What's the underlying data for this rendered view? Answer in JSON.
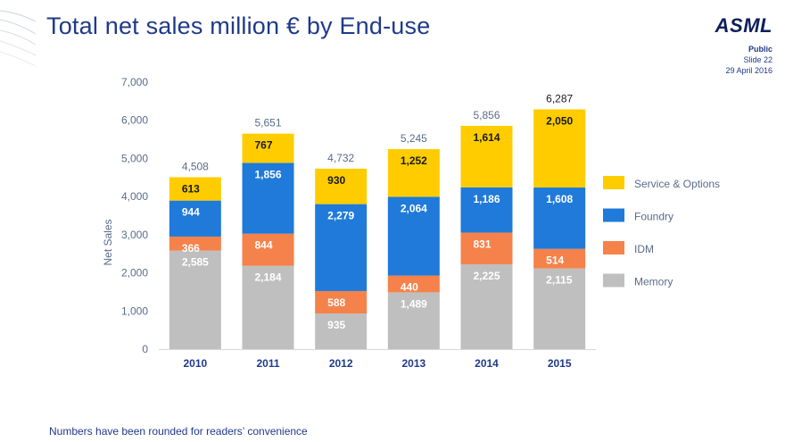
{
  "header": {
    "title": "Total net sales million € by End-use",
    "logo": "ASML",
    "classification": "Public",
    "slide": "Slide 22",
    "date": "29 April 2016"
  },
  "footnote": "Numbers have been rounded for readers’ convenience",
  "colors": {
    "title": "#1f3a8a",
    "memory": "#bfbfbf",
    "idm": "#f5824a",
    "foundry": "#1f7ad9",
    "service": "#ffcc00"
  },
  "chart_data": {
    "type": "bar",
    "stacked": true,
    "title": "",
    "xlabel": "",
    "ylabel": "Net Sales",
    "ylim": [
      0,
      7000
    ],
    "yticks": [
      "0",
      "1,000",
      "2,000",
      "3,000",
      "4,000",
      "5,000",
      "6,000",
      "7,000"
    ],
    "categories": [
      "2010",
      "2011",
      "2012",
      "2013",
      "2014",
      "2015"
    ],
    "series": [
      {
        "name": "Memory",
        "color": "#bfbfbf",
        "values": [
          2585,
          2184,
          935,
          1489,
          2225,
          2115
        ],
        "labels": [
          "2,585",
          "2,184",
          "935",
          "1,489",
          "2,225",
          "2,115"
        ]
      },
      {
        "name": "IDM",
        "color": "#f5824a",
        "values": [
          366,
          844,
          588,
          440,
          831,
          514
        ],
        "labels": [
          "366",
          "844",
          "588",
          "440",
          "831",
          "514"
        ]
      },
      {
        "name": "Foundry",
        "color": "#1f7ad9",
        "values": [
          944,
          1856,
          2279,
          2064,
          1186,
          1608
        ],
        "labels": [
          "944",
          "1,856",
          "2,279",
          "2,064",
          "1,186",
          "1,608"
        ]
      },
      {
        "name": "Service & Options",
        "color": "#ffcc00",
        "values": [
          613,
          767,
          930,
          1252,
          1614,
          2050
        ],
        "labels": [
          "613",
          "767",
          "930",
          "1,252",
          "1,614",
          "2,050"
        ]
      }
    ],
    "totals": [
      4508,
      5651,
      4732,
      5245,
      5856,
      6287
    ],
    "total_labels": [
      "4,508",
      "5,651",
      "4,732",
      "5,245",
      "5,856",
      "6,287"
    ],
    "legend_order": [
      "Service & Options",
      "Foundry",
      "IDM",
      "Memory"
    ],
    "legend_position": "right"
  }
}
